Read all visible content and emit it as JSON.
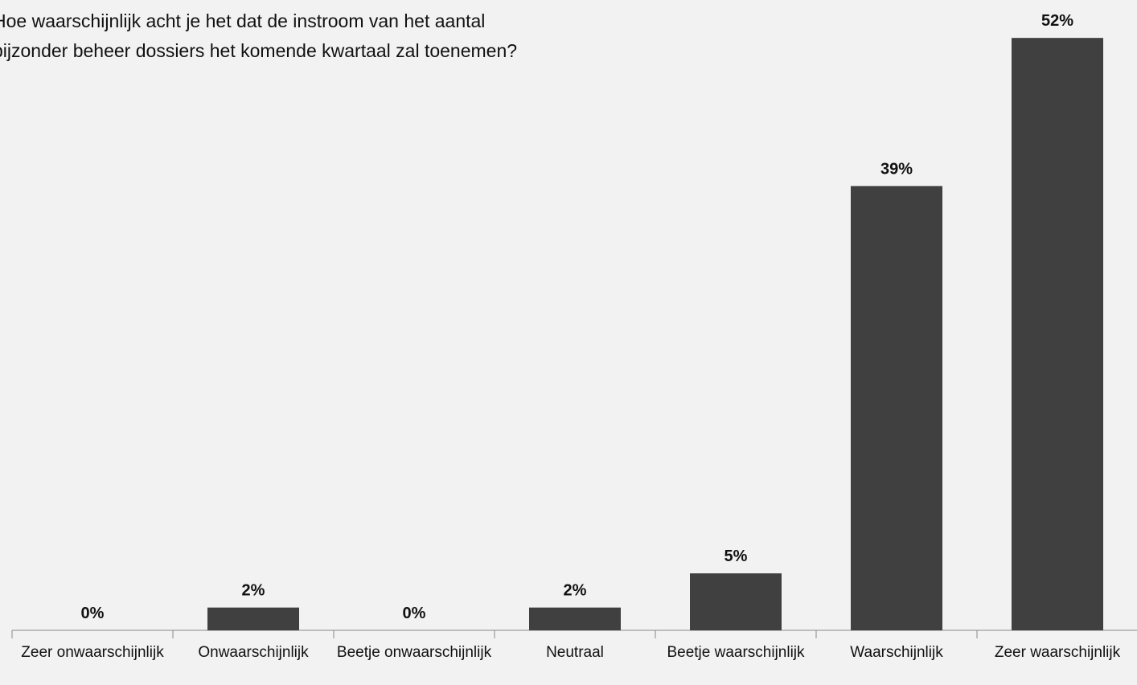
{
  "chart_data": {
    "type": "bar",
    "title": "Hoe waarschijnlijk acht je het dat de instroom van het aantal bijzonder beheer dossiers het komende kwartaal zal toenemen?",
    "categories": [
      "Zeer onwaarschijnlijk",
      "Onwaarschijnlijk",
      "Beetje onwaarschijnlijk",
      "Neutraal",
      "Beetje waarschijnlijk",
      "Waarschijnlijk",
      "Zeer waarschijnlijk"
    ],
    "values": [
      0,
      2,
      0,
      2,
      5,
      39,
      52
    ],
    "value_labels": [
      "0%",
      "2%",
      "0%",
      "2%",
      "5%",
      "39%",
      "52%"
    ],
    "color": "#404040"
  }
}
